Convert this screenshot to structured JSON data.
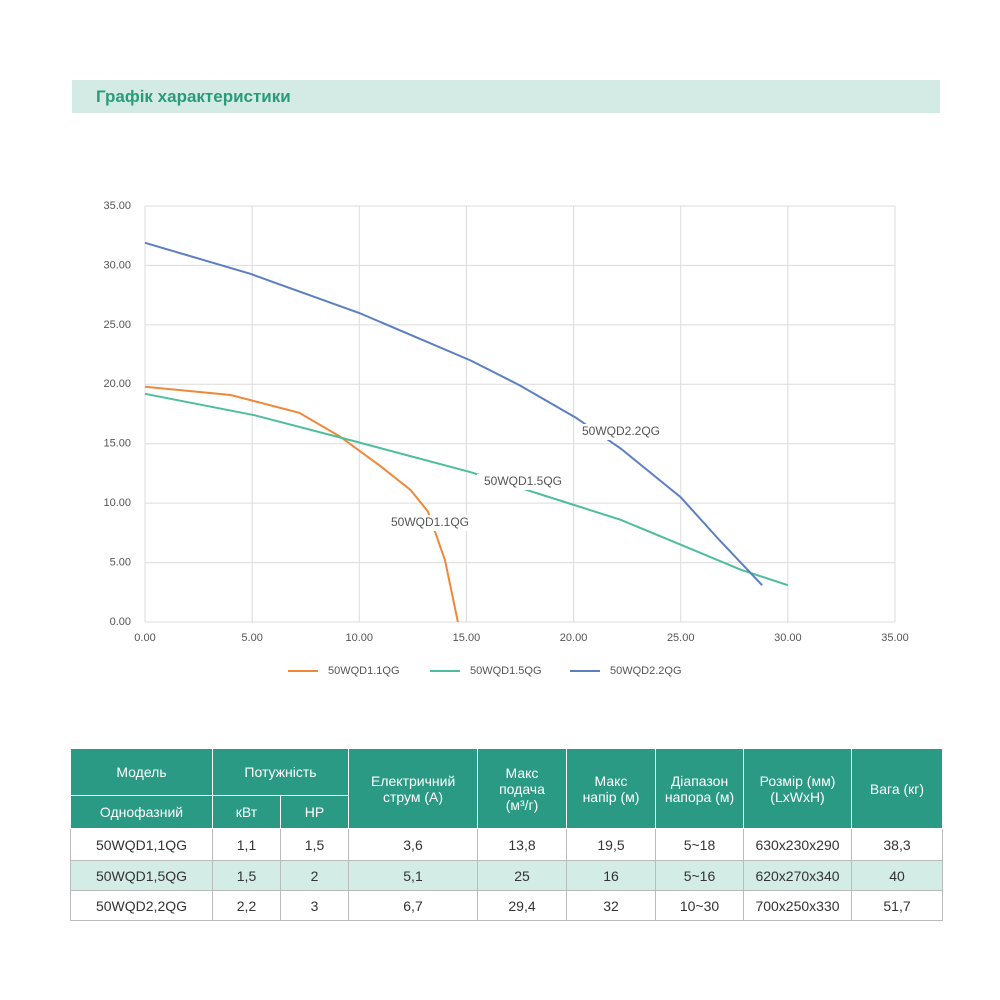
{
  "header": {
    "title": "Графік характеристики"
  },
  "chart_data": {
    "type": "line",
    "xlim": [
      0,
      35
    ],
    "ylim": [
      0,
      35
    ],
    "xticks": [
      {
        "value": 0,
        "label": "0.00"
      },
      {
        "value": 5,
        "label": "5.00"
      },
      {
        "value": 10,
        "label": "10.00"
      },
      {
        "value": 15,
        "label": "15.00"
      },
      {
        "value": 20,
        "label": "20.00"
      },
      {
        "value": 25,
        "label": "25.00"
      },
      {
        "value": 30,
        "label": "30.00"
      },
      {
        "value": 35,
        "label": "35.00"
      }
    ],
    "yticks": [
      {
        "value": 0,
        "label": "0.00"
      },
      {
        "value": 5,
        "label": "5.00"
      },
      {
        "value": 10,
        "label": "10.00"
      },
      {
        "value": 15,
        "label": "15.00"
      },
      {
        "value": 20,
        "label": "20.00"
      },
      {
        "value": 25,
        "label": "25.00"
      },
      {
        "value": 30,
        "label": "30.00"
      },
      {
        "value": 35,
        "label": "35.00"
      }
    ],
    "grid": true,
    "legend": "bottom",
    "series": [
      {
        "name": "50WQD1.1QG",
        "color": "#f0883a",
        "x": [
          0,
          4,
          7.2,
          9.1,
          11,
          12.4,
          13.2,
          14,
          14.6
        ],
        "values": [
          19.8,
          19.1,
          17.6,
          15.6,
          13.1,
          11.1,
          9.3,
          5.2,
          0
        ]
      },
      {
        "name": "50WQD1.5QG",
        "color": "#4dbd9e",
        "x": [
          0,
          5.1,
          10,
          15.2,
          20.1,
          22.2,
          25,
          27.8,
          30
        ],
        "values": [
          19.2,
          17.4,
          15.1,
          12.6,
          9.8,
          8.6,
          6.5,
          4.4,
          3.1
        ]
      },
      {
        "name": "50WQD2.2QG",
        "color": "#5b7fc0",
        "x": [
          0,
          4.9,
          10,
          15.2,
          17.5,
          20.1,
          22.2,
          25,
          26.8,
          28.8
        ],
        "values": [
          31.9,
          29.3,
          26,
          22,
          19.9,
          17.2,
          14.6,
          10.5,
          6.9,
          3.1
        ]
      }
    ]
  },
  "table": {
    "header_top": [
      "Модель",
      "Потужність",
      "Електричний струм (А)",
      "Макс подача (м³/г)",
      "Макс напір (м)",
      "Діапазон напора (м)",
      "Розмір (мм) (LxWxH)",
      "Вага (кг)"
    ],
    "header_sub": [
      "Однофазний",
      "кВт",
      "HP"
    ],
    "rows": [
      [
        "50WQD1,1QG",
        "1,1",
        "1,5",
        "3,6",
        "13,8",
        "19,5",
        "5~18",
        "630x230x290",
        "38,3"
      ],
      [
        "50WQD1,5QG",
        "1,5",
        "2",
        "5,1",
        "25",
        "16",
        "5~16",
        "620x270x340",
        "40"
      ],
      [
        "50WQD2,2QG",
        "2,2",
        "3",
        "6,7",
        "29,4",
        "32",
        "10~30",
        "700x250x330",
        "51,7"
      ]
    ]
  }
}
